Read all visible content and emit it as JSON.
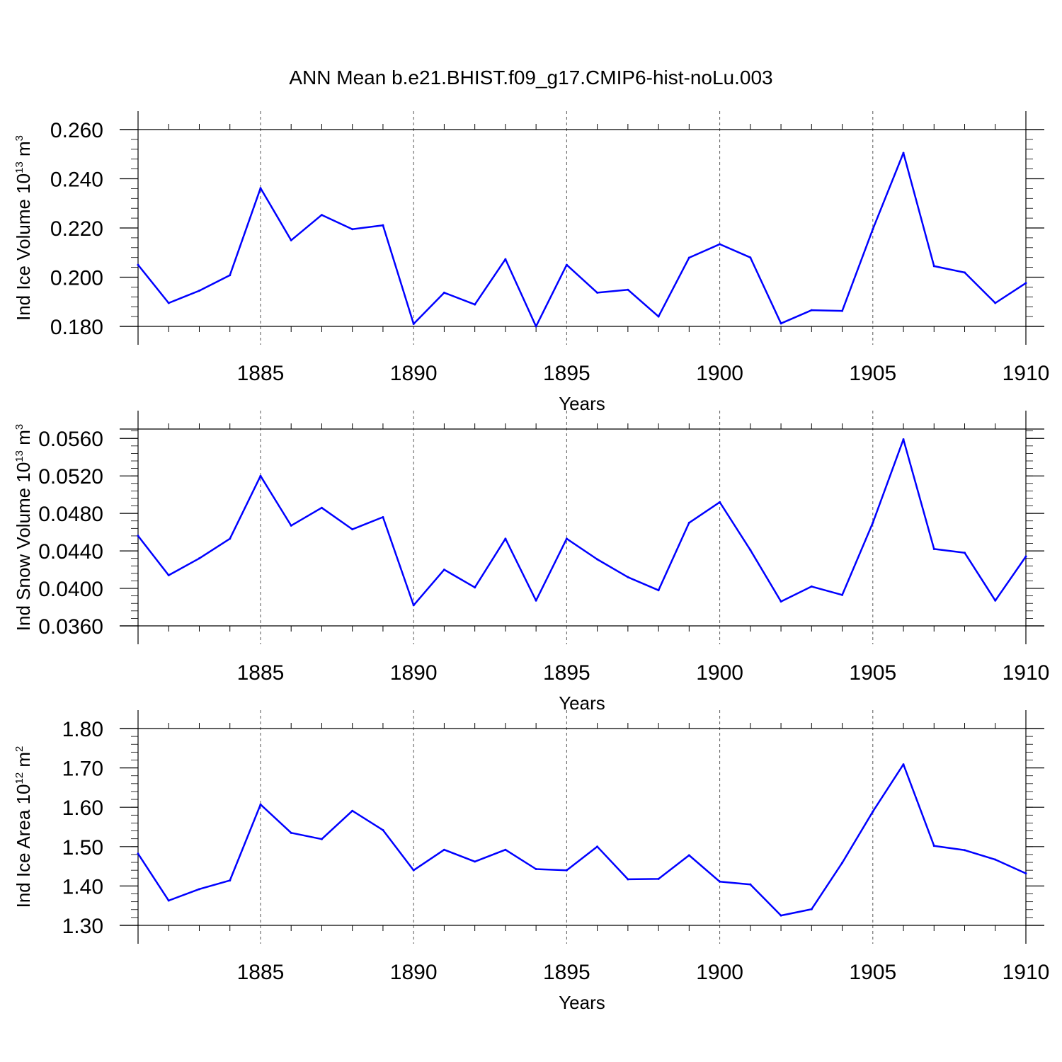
{
  "chart_data": {
    "type": "line",
    "title": "ANN Mean b.e21.BHIST.f09_g17.CMIP6-hist-noLu.003",
    "x": [
      1881,
      1882,
      1883,
      1884,
      1885,
      1886,
      1887,
      1888,
      1889,
      1890,
      1891,
      1892,
      1893,
      1894,
      1895,
      1896,
      1897,
      1898,
      1899,
      1900,
      1901,
      1902,
      1903,
      1904,
      1905,
      1906,
      1907,
      1908,
      1909,
      1910
    ],
    "xlim": [
      1881,
      1910
    ],
    "line_color": "#0000ff",
    "panels": [
      {
        "name": "ice-volume",
        "ylabel_main": "Ind Ice Volume 10",
        "ylabel_sup": "13",
        "ylabel_tail": " m",
        "ylabel_sup2": "3",
        "xlabel": "Years",
        "ylim": [
          0.18,
          0.26
        ],
        "yticks": [
          0.18,
          0.2,
          0.22,
          0.24,
          0.26
        ],
        "yticklabels": [
          "0.180",
          "0.200",
          "0.220",
          "0.240",
          "0.260"
        ],
        "yminor": 0.004,
        "xticks": [
          1885,
          1890,
          1895,
          1900,
          1905,
          1910
        ],
        "xticklabels": [
          "1885",
          "1890",
          "1895",
          "1900",
          "1905",
          "1910"
        ],
        "values": [
          0.205,
          0.1895,
          0.1945,
          0.2008,
          0.2362,
          0.215,
          0.2253,
          0.2195,
          0.2211,
          0.181,
          0.1937,
          0.1889,
          0.2073,
          0.18,
          0.205,
          0.1937,
          0.1949,
          0.184,
          0.2079,
          0.2134,
          0.208,
          0.1812,
          0.1866,
          0.1863,
          0.2195,
          0.2505,
          0.2045,
          0.2019,
          0.1895,
          0.1976
        ]
      },
      {
        "name": "snow-volume",
        "ylabel_main": "Ind Snow Volume 10",
        "ylabel_sup": "13",
        "ylabel_tail": " m",
        "ylabel_sup2": "3",
        "xlabel": "Years",
        "ylim": [
          0.036,
          0.057
        ],
        "yticks": [
          0.036,
          0.04,
          0.044,
          0.048,
          0.052,
          0.056
        ],
        "yticklabels": [
          "0.0360",
          "0.0400",
          "0.0440",
          "0.0480",
          "0.0520",
          "0.0560"
        ],
        "yminor": 0.0008,
        "xticks": [
          1885,
          1890,
          1895,
          1900,
          1905,
          1910
        ],
        "xticklabels": [
          "1885",
          "1890",
          "1895",
          "1900",
          "1905",
          "1910"
        ],
        "values": [
          0.0456,
          0.0414,
          0.0432,
          0.0453,
          0.052,
          0.0467,
          0.0486,
          0.0463,
          0.0476,
          0.0382,
          0.042,
          0.0401,
          0.0453,
          0.0387,
          0.0453,
          0.0431,
          0.0412,
          0.0398,
          0.047,
          0.0492,
          0.0441,
          0.0386,
          0.0402,
          0.0393,
          0.047,
          0.0559,
          0.0442,
          0.0438,
          0.0387,
          0.0434
        ]
      },
      {
        "name": "ice-area",
        "ylabel_main": "Ind Ice Area 10",
        "ylabel_sup": "12",
        "ylabel_tail": " m",
        "ylabel_sup2": "2",
        "xlabel": "Years",
        "ylim": [
          1.3,
          1.8
        ],
        "yticks": [
          1.3,
          1.4,
          1.5,
          1.6,
          1.7,
          1.8
        ],
        "yticklabels": [
          "1.30",
          "1.40",
          "1.50",
          "1.60",
          "1.70",
          "1.80"
        ],
        "yminor": 0.02,
        "xticks": [
          1885,
          1890,
          1895,
          1900,
          1905,
          1910
        ],
        "xticklabels": [
          "1885",
          "1890",
          "1895",
          "1900",
          "1905",
          "1910"
        ],
        "values": [
          1.482,
          1.363,
          1.392,
          1.414,
          1.607,
          1.535,
          1.519,
          1.591,
          1.542,
          1.44,
          1.492,
          1.462,
          1.492,
          1.443,
          1.44,
          1.5,
          1.417,
          1.418,
          1.478,
          1.411,
          1.404,
          1.325,
          1.341,
          1.459,
          1.589,
          1.709,
          1.502,
          1.491,
          1.467,
          1.432
        ]
      }
    ]
  }
}
